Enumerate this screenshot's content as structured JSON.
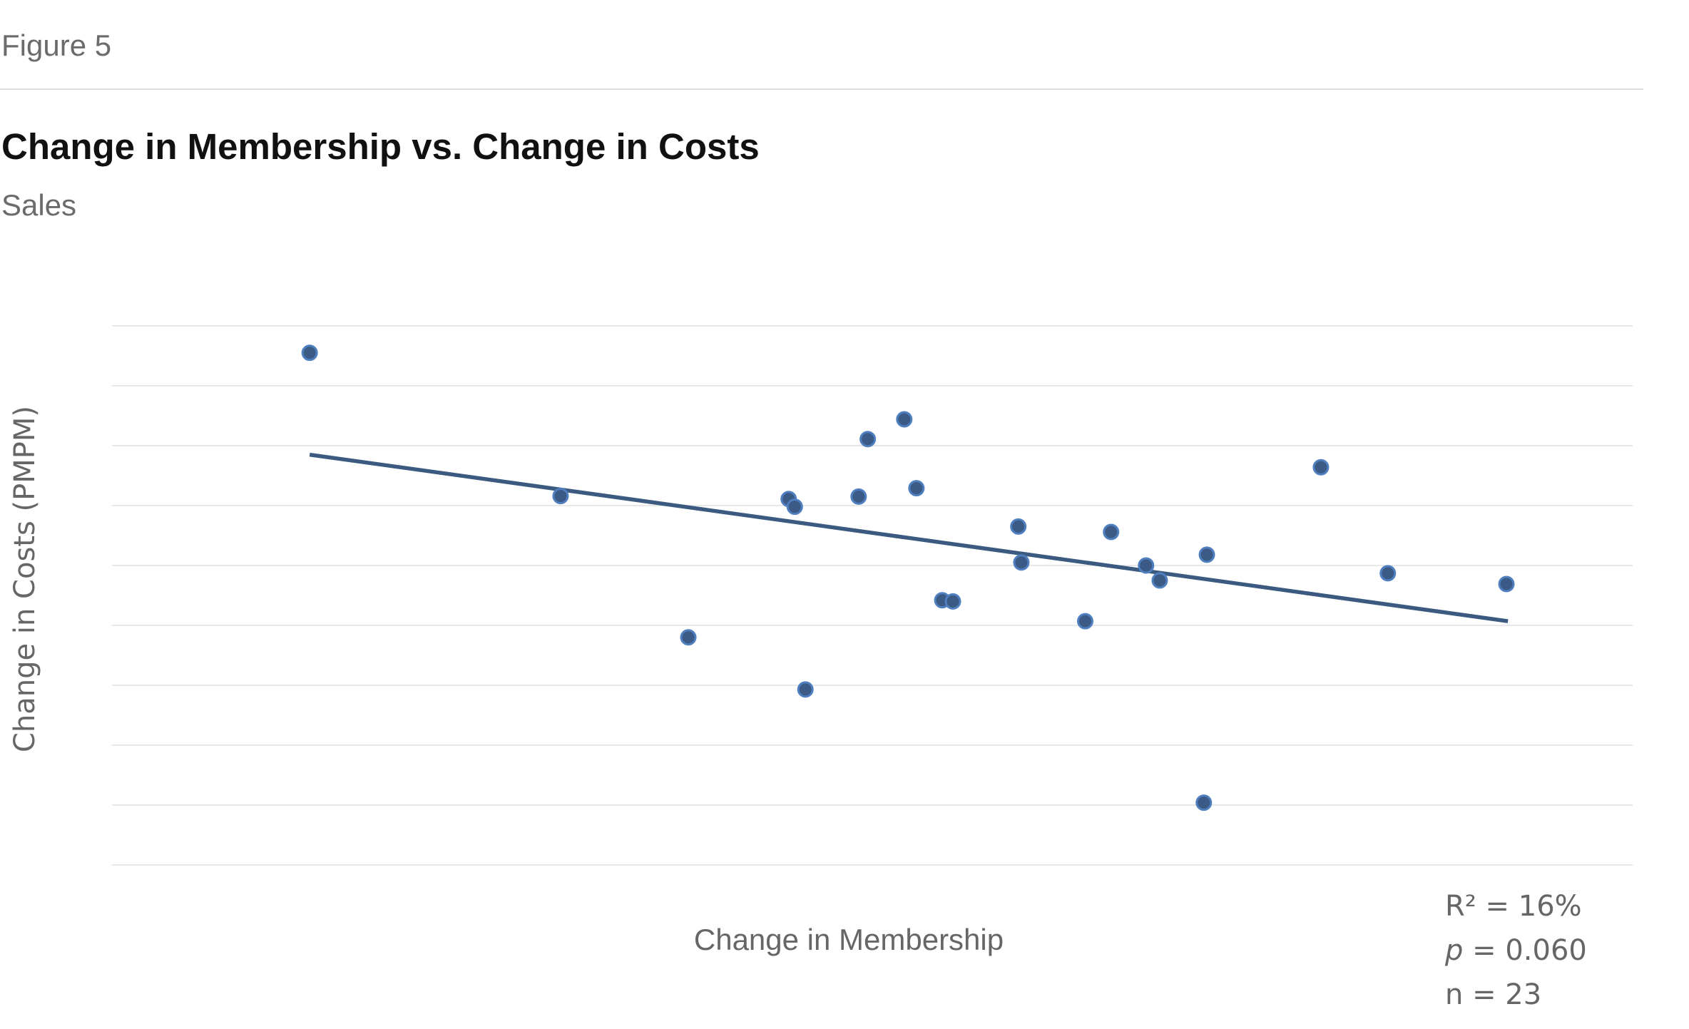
{
  "figure_label": "Figure 5",
  "colors": {
    "marker": "#3b5a85",
    "marker_edge": "#4f7fbf",
    "trendline": "#3b5a80",
    "grid": "#e8e8e8"
  },
  "chart_data": {
    "type": "scatter",
    "title": "Change in Membership vs. Change in Costs",
    "subtitle": "Sales",
    "xlabel": "Change in Membership",
    "ylabel": "Change in Costs (PMPM)",
    "tick_labels_shown": false,
    "xlim": [
      0,
      100
    ],
    "ylim": [
      0,
      9
    ],
    "grid": "horizontal",
    "points": [
      {
        "x": 13.0,
        "y": 8.55
      },
      {
        "x": 29.5,
        "y": 6.16
      },
      {
        "x": 37.9,
        "y": 3.8
      },
      {
        "x": 44.5,
        "y": 6.11
      },
      {
        "x": 44.9,
        "y": 5.98
      },
      {
        "x": 45.6,
        "y": 2.93
      },
      {
        "x": 49.1,
        "y": 6.15
      },
      {
        "x": 49.7,
        "y": 7.11
      },
      {
        "x": 52.1,
        "y": 7.44
      },
      {
        "x": 52.9,
        "y": 6.29
      },
      {
        "x": 54.6,
        "y": 4.42
      },
      {
        "x": 55.3,
        "y": 4.4
      },
      {
        "x": 59.6,
        "y": 5.65
      },
      {
        "x": 59.8,
        "y": 5.05
      },
      {
        "x": 64.0,
        "y": 4.07
      },
      {
        "x": 65.7,
        "y": 5.56
      },
      {
        "x": 68.0,
        "y": 5.0
      },
      {
        "x": 68.9,
        "y": 4.75
      },
      {
        "x": 71.8,
        "y": 1.04
      },
      {
        "x": 72.0,
        "y": 5.18
      },
      {
        "x": 79.5,
        "y": 6.64
      },
      {
        "x": 83.9,
        "y": 4.87
      },
      {
        "x": 91.7,
        "y": 4.69
      }
    ],
    "trendline": {
      "x": [
        13.0,
        91.8
      ],
      "y": [
        6.85,
        4.07
      ]
    },
    "annotations": {
      "r2_label": "R² = 16%",
      "p_symbol": "p",
      "p_value": " = 0.060",
      "n_label": "n = 23"
    }
  }
}
